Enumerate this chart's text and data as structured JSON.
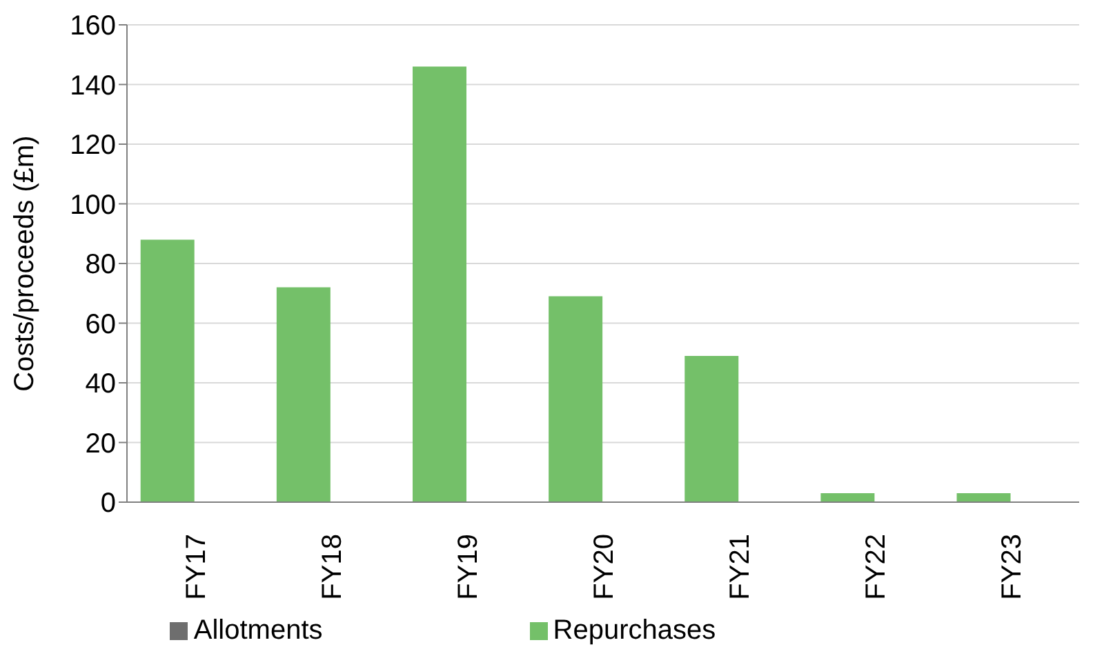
{
  "chart_data": {
    "type": "bar",
    "ylabel": "Costs/proceeds (£m)",
    "categories": [
      "FY17",
      "FY18",
      "FY19",
      "FY20",
      "FY21",
      "FY22",
      "FY23"
    ],
    "series": [
      {
        "name": "Repurchases",
        "color": "#74c069",
        "values": [
          88,
          72,
          146,
          69,
          49,
          3,
          3
        ]
      },
      {
        "name": "Allotments",
        "color": "#6e6e6e",
        "values": [
          0,
          0,
          0,
          0,
          0,
          0,
          0
        ]
      }
    ],
    "ylim": [
      0,
      160
    ],
    "yticks": [
      0,
      20,
      40,
      60,
      80,
      100,
      120,
      140,
      160
    ],
    "grid": "y",
    "legend": "bottom"
  }
}
